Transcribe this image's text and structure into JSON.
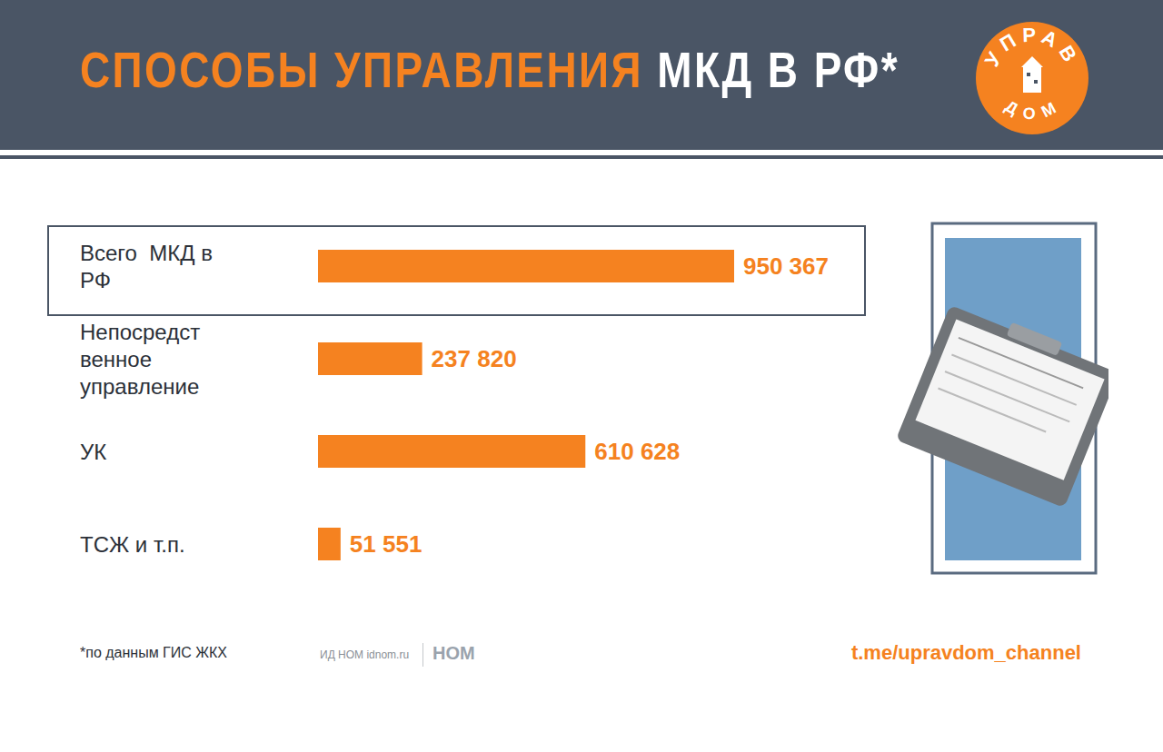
{
  "chart_data": {
    "type": "bar",
    "title": "СПОСОБЫ УПРАВЛЕНИЯ МКД В РФ*",
    "categories": [
      "Всего  МКД в РФ",
      "Непосредственное управление",
      "УК",
      "ТСЖ и т.п."
    ],
    "values": [
      950367,
      237820,
      610628,
      51551
    ],
    "value_labels": [
      "950 367",
      "237 820",
      "610 628",
      "51 551"
    ],
    "color": "#f58220",
    "xlim": [
      0,
      950367
    ],
    "orientation": "horizontal",
    "data_labels": true,
    "tick_labels": "y",
    "grid": false,
    "annotations": [
      "*по данным ГИС ЖКХ",
      "ИД НОМ idnom.ru",
      "НОМ",
      "t.me/upravdom_channel"
    ]
  },
  "logo": [
    "УПРАВ",
    "ДОМ"
  ]
}
